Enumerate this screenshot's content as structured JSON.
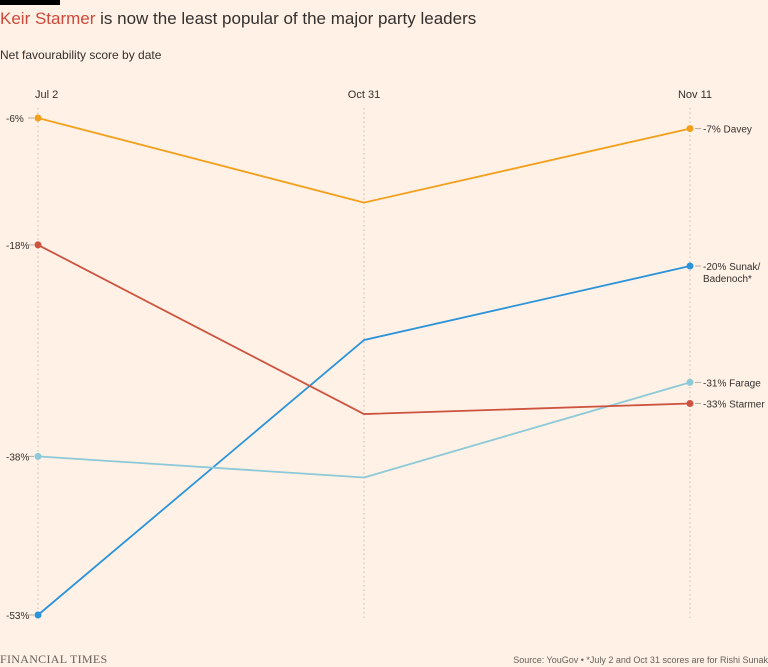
{
  "header": {
    "title_highlight": "Keir Starmer",
    "title_rest": " is now the least popular of the major party leaders",
    "subtitle": "Net favourability score by date"
  },
  "footer": {
    "logo": "FINANCIAL TIMES",
    "source": "Source: YouGov • *July 2 and Oct 31 scores are for Rishi Sunak"
  },
  "chart_data": {
    "type": "line",
    "title": "Keir Starmer is now the least popular of the major party leaders",
    "subtitle": "Net favourability score by date",
    "categories": [
      "Jul 2",
      "Oct 31",
      "Nov 11"
    ],
    "ylim": [
      -53,
      -6
    ],
    "y_tick_labels": [
      {
        "value": -6,
        "label": "-6%"
      },
      {
        "value": -18,
        "label": "-18%"
      },
      {
        "value": -38,
        "label": "-38%"
      },
      {
        "value": -53,
        "label": "-53%"
      }
    ],
    "series": [
      {
        "name": "Davey",
        "color": "#f2a01c",
        "values": [
          -6,
          -14,
          -7
        ],
        "end_label": [
          "-7% Davey"
        ]
      },
      {
        "name": "Sunak/Badenoch",
        "color": "#2b93d9",
        "values": [
          -53,
          -27,
          -20
        ],
        "end_label": [
          "-20% Sunak/",
          "Badenoch*"
        ]
      },
      {
        "name": "Farage",
        "color": "#8cc9d9",
        "values": [
          -38,
          -40,
          -31
        ],
        "end_label": [
          "-31% Farage"
        ]
      },
      {
        "name": "Starmer",
        "color": "#cc5340",
        "values": [
          -18,
          -34,
          -33
        ],
        "end_label": [
          "-33% Starmer"
        ]
      }
    ],
    "grid": true
  }
}
